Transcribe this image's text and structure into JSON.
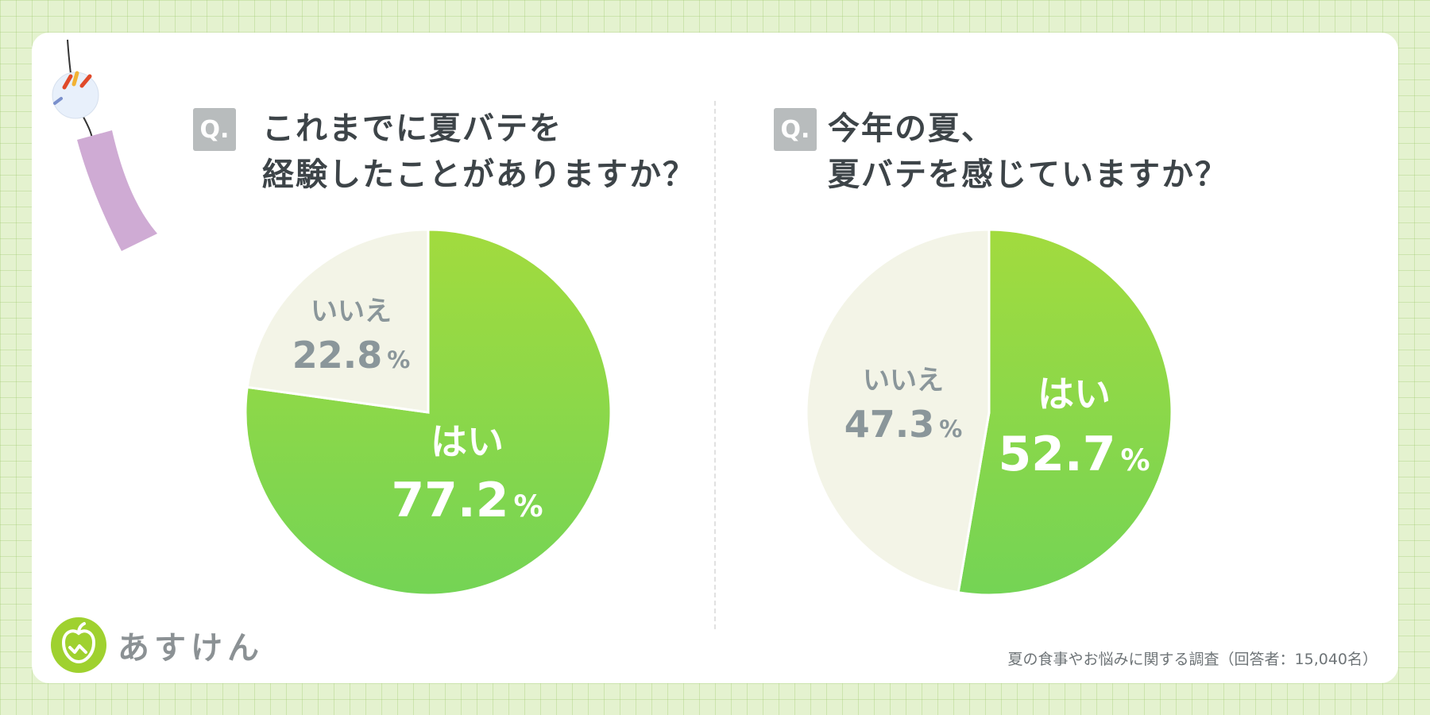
{
  "left": {
    "badge": "Q.",
    "question_line1": "これまでに夏バテを",
    "question_line2": "経験したことがありますか？"
  },
  "right": {
    "badge": "Q.",
    "question_line1": "今年の夏、",
    "question_line2": "夏バテを感じていますか？"
  },
  "colors": {
    "yes_top": "#a2db3e",
    "yes_bottom": "#74d455",
    "no": "#f3f4e7",
    "no_text": "#8a969a",
    "yes_text": "#ffffff"
  },
  "chart_data": [
    {
      "type": "pie",
      "title": "これまでに夏バテを経験したことがありますか？",
      "slices": [
        {
          "label": "はい",
          "value": 77.2,
          "display": "77.2"
        },
        {
          "label": "いいえ",
          "value": 22.8,
          "display": "22.8"
        }
      ],
      "unit": "%"
    },
    {
      "type": "pie",
      "title": "今年の夏、夏バテを感じていますか？",
      "slices": [
        {
          "label": "はい",
          "value": 52.7,
          "display": "52.7"
        },
        {
          "label": "いいえ",
          "value": 47.3,
          "display": "47.3"
        }
      ],
      "unit": "%"
    }
  ],
  "logo": {
    "text": "あすけん"
  },
  "footnote": "夏の食事やお悩みに関する調査（回答者：15,040名）"
}
